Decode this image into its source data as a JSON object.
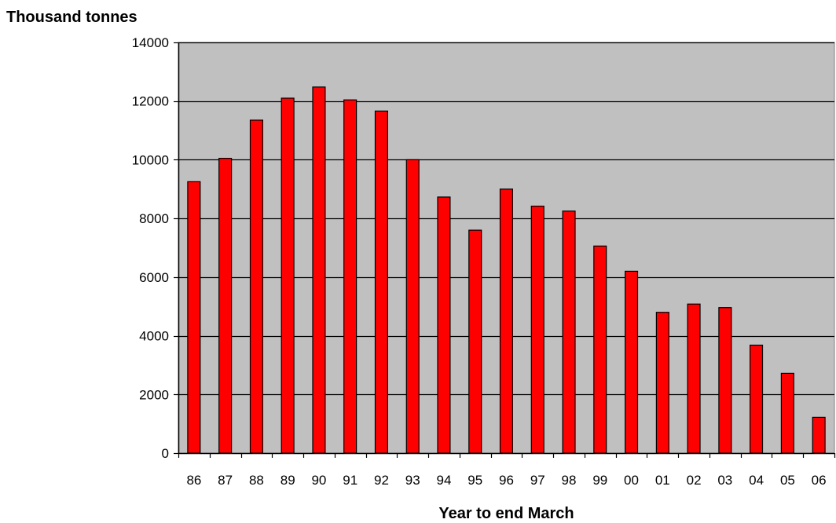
{
  "chart_data": {
    "type": "bar",
    "title": "",
    "ylabel": "Thousand tonnes",
    "xlabel": "Year to end March",
    "categories": [
      "86",
      "87",
      "88",
      "89",
      "90",
      "91",
      "92",
      "93",
      "94",
      "95",
      "96",
      "97",
      "98",
      "99",
      "00",
      "01",
      "02",
      "03",
      "04",
      "05",
      "06"
    ],
    "values": [
      9250,
      10050,
      11350,
      12100,
      12480,
      12040,
      11660,
      10000,
      8730,
      7600,
      9000,
      8420,
      8250,
      7060,
      6200,
      4800,
      5080,
      4960,
      3680,
      2720,
      1220
    ],
    "ylim": [
      0,
      14000
    ],
    "yticks": [
      0,
      2000,
      4000,
      6000,
      8000,
      10000,
      12000,
      14000
    ],
    "grid": true,
    "legend": "none",
    "colors": {
      "bar": "#ff0000",
      "bar_stroke": "#000000",
      "plot_background": "#c0c0c0",
      "gridline": "#000000"
    }
  }
}
